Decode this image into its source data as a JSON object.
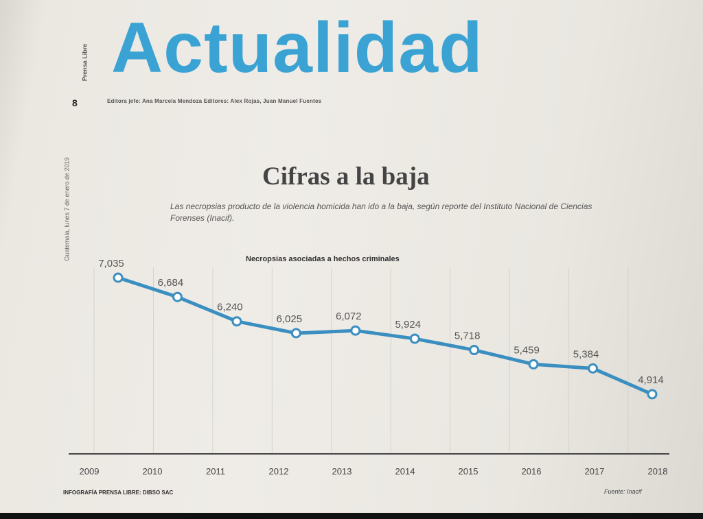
{
  "header": {
    "section_title": "Actualidad",
    "page_number": "8",
    "credits": "Editora jefe: Ana Marcela Mendoza  Editores: Alex Rojas, Juan Manuel Fuentes",
    "side_date": "Guatemala, lunes 7 de enero de 2019",
    "side_brand": "Prensa Libre"
  },
  "article": {
    "title": "Cifras a la baja",
    "subtitle": "Las necropsias producto de la violencia homicida han ido a la baja, según reporte del Instituto Nacional de Ciencias Forenses (Inacif)."
  },
  "chart_data": {
    "type": "line",
    "title": "Necropsias asociadas a hechos criminales",
    "x": [
      "2009",
      "2010",
      "2011",
      "2012",
      "2013",
      "2014",
      "2015",
      "2016",
      "2017",
      "2018"
    ],
    "values": [
      7035,
      6684,
      6240,
      6025,
      6072,
      5924,
      5718,
      5459,
      5384,
      4914
    ],
    "value_labels": [
      "7,035",
      "6,684",
      "6,240",
      "6,025",
      "6,072",
      "5,924",
      "5,718",
      "5,459",
      "5,384",
      "4,914"
    ],
    "ylim": [
      3000,
      7200
    ],
    "grid": "vertical",
    "line_color": "#3b8fc0"
  },
  "footer": {
    "infographic_credit": "INFOGRAFÍA PRENSA LIBRE: DIBSO SAC",
    "source": "Fuente: Inacif"
  }
}
